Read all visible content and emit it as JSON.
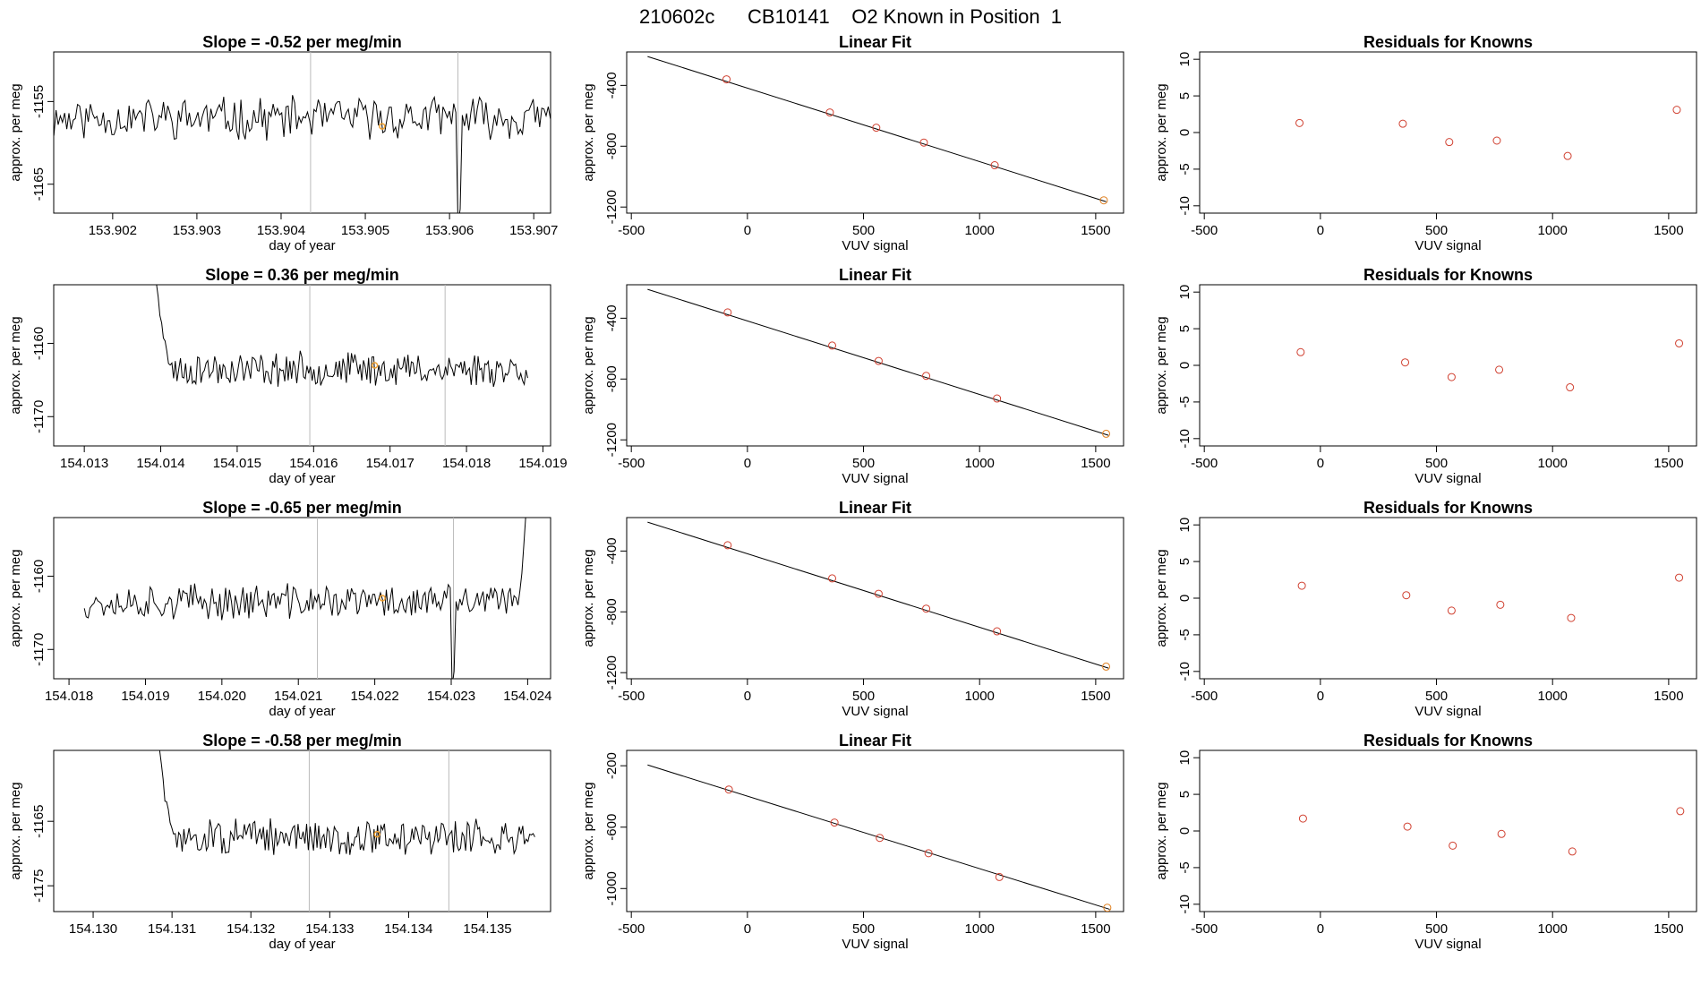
{
  "title": "210602c      CB10141    O2 Known in Position  1",
  "colors": {
    "trace": "#000000",
    "marker": "#f0a030",
    "residual": "#d04030",
    "fit_point": "#d04030",
    "last_point": "#e08020",
    "vline": "#bbbbbb",
    "axis": "#000000"
  },
  "chart_data": [
    {
      "type": "line",
      "title": "Slope =  -0.52  per meg/min",
      "xlabel": "day of year",
      "ylabel": "approx. per meg",
      "xlim": [
        153.9013,
        153.9072
      ],
      "ylim": [
        -1168.5,
        -1149
      ],
      "xticks": [
        153.902,
        153.903,
        153.904,
        153.905,
        153.906,
        153.907
      ],
      "xtick_labels": [
        "153.902",
        "153.903",
        "153.904",
        "153.905",
        "153.906",
        "153.907"
      ],
      "yticks": [
        -1165,
        -1155
      ],
      "ytick_labels": [
        "-1165",
        "-1155"
      ],
      "vlines": [
        153.90435,
        153.9061
      ],
      "marker": {
        "x": 153.9052,
        "y": -1158
      },
      "trace": {
        "x0": 153.9012,
        "x1": 153.9073,
        "n": 240,
        "base": -1157,
        "amp": 2.2,
        "seed": 11,
        "start_high": false,
        "end_high": true,
        "dips": [
          {
            "x": 153.9061,
            "y": -1170
          }
        ]
      }
    },
    {
      "type": "scatter",
      "title": "Linear Fit",
      "xlabel": "VUV signal",
      "ylabel": "approx. per meg",
      "xlim": [
        -520,
        1620
      ],
      "ylim": [
        -1240,
        -180
      ],
      "xticks": [
        -500,
        0,
        500,
        1000,
        1500
      ],
      "xtick_labels": [
        "-500",
        "0",
        "500",
        "1000",
        "1500"
      ],
      "yticks": [
        -1200,
        -800,
        -400
      ],
      "ytick_labels": [
        "-1200",
        "-800",
        "-400"
      ],
      "line": {
        "x0": -430,
        "y0": -210,
        "x1": 1545,
        "y1": -1165
      },
      "points": [
        {
          "x": -90,
          "y": -360
        },
        {
          "x": 355,
          "y": -578
        },
        {
          "x": 555,
          "y": -678
        },
        {
          "x": 760,
          "y": -776
        },
        {
          "x": 1065,
          "y": -925
        },
        {
          "x": 1535,
          "y": -1156
        }
      ]
    },
    {
      "type": "scatter",
      "title": "Residuals for Knowns",
      "xlabel": "VUV signal",
      "ylabel": "approx. per meg",
      "xlim": [
        -520,
        1620
      ],
      "ylim": [
        -11,
        11
      ],
      "xticks": [
        -500,
        0,
        500,
        1000,
        1500
      ],
      "xtick_labels": [
        "-500",
        "0",
        "500",
        "1000",
        "1500"
      ],
      "yticks": [
        -10,
        -5,
        0,
        5,
        10
      ],
      "ytick_labels": [
        "-10",
        "-5",
        "0",
        "5",
        "10"
      ],
      "points": [
        {
          "x": -90,
          "y": 1.3
        },
        {
          "x": 355,
          "y": 1.2
        },
        {
          "x": 555,
          "y": -1.3
        },
        {
          "x": 760,
          "y": -1.1
        },
        {
          "x": 1065,
          "y": -3.2
        },
        {
          "x": 1535,
          "y": 3.1
        }
      ]
    },
    {
      "type": "line",
      "title": "Slope =  0.36  per meg/min",
      "xlabel": "day of year",
      "ylabel": "approx. per meg",
      "xlim": [
        154.0126,
        154.0191
      ],
      "ylim": [
        -1174,
        -1152
      ],
      "xticks": [
        154.013,
        154.014,
        154.015,
        154.016,
        154.017,
        154.018,
        154.019
      ],
      "xtick_labels": [
        "154.013",
        "154.014",
        "154.015",
        "154.016",
        "154.017",
        "154.018",
        "154.019"
      ],
      "yticks": [
        -1170,
        -1160
      ],
      "ytick_labels": [
        "-1170",
        "-1160"
      ],
      "vlines": [
        154.01595,
        154.01772
      ],
      "marker": {
        "x": 154.0168,
        "y": -1163
      },
      "trace": {
        "x0": 154.0139,
        "x1": 154.0188,
        "n": 220,
        "base": -1163.5,
        "amp": 2.0,
        "seed": 23,
        "start_high": true,
        "end_high": false,
        "dips": []
      }
    },
    {
      "type": "scatter",
      "title": "Linear Fit",
      "xlabel": "VUV signal",
      "ylabel": "approx. per meg",
      "xlim": [
        -520,
        1620
      ],
      "ylim": [
        -1240,
        -180
      ],
      "xticks": [
        -500,
        0,
        500,
        1000,
        1500
      ],
      "xtick_labels": [
        "-500",
        "0",
        "500",
        "1000",
        "1500"
      ],
      "yticks": [
        -1200,
        -800,
        -400
      ],
      "ytick_labels": [
        "-1200",
        "-800",
        "-400"
      ],
      "line": {
        "x0": -430,
        "y0": -210,
        "x1": 1555,
        "y1": -1170
      },
      "points": [
        {
          "x": -85,
          "y": -362
        },
        {
          "x": 365,
          "y": -580
        },
        {
          "x": 565,
          "y": -681
        },
        {
          "x": 770,
          "y": -779
        },
        {
          "x": 1075,
          "y": -928
        },
        {
          "x": 1545,
          "y": -1160
        }
      ]
    },
    {
      "type": "scatter",
      "title": "Residuals for Knowns",
      "xlabel": "VUV signal",
      "ylabel": "approx. per meg",
      "xlim": [
        -520,
        1620
      ],
      "ylim": [
        -11,
        11
      ],
      "xticks": [
        -500,
        0,
        500,
        1000,
        1500
      ],
      "xtick_labels": [
        "-500",
        "0",
        "500",
        "1000",
        "1500"
      ],
      "yticks": [
        -10,
        -5,
        0,
        5,
        10
      ],
      "ytick_labels": [
        "-10",
        "-5",
        "0",
        "5",
        "10"
      ],
      "points": [
        {
          "x": -85,
          "y": 1.8
        },
        {
          "x": 365,
          "y": 0.4
        },
        {
          "x": 565,
          "y": -1.6
        },
        {
          "x": 770,
          "y": -0.6
        },
        {
          "x": 1075,
          "y": -3.0
        },
        {
          "x": 1545,
          "y": 3.0
        }
      ]
    },
    {
      "type": "line",
      "title": "Slope =  -0.65  per meg/min",
      "xlabel": "day of year",
      "ylabel": "approx. per meg",
      "xlim": [
        154.0178,
        154.0243
      ],
      "ylim": [
        -1174,
        -1152
      ],
      "xticks": [
        154.018,
        154.019,
        154.02,
        154.021,
        154.022,
        154.023,
        154.024
      ],
      "xtick_labels": [
        "154.018",
        "154.019",
        "154.020",
        "154.021",
        "154.022",
        "154.023",
        "154.024"
      ],
      "yticks": [
        -1170,
        -1160
      ],
      "ytick_labels": [
        "-1170",
        "-1160"
      ],
      "vlines": [
        154.02125,
        154.02303
      ],
      "marker": {
        "x": 154.0221,
        "y": -1163
      },
      "trace": {
        "x0": 154.0182,
        "x1": 154.024,
        "n": 230,
        "base": -1163.5,
        "amp": 2.1,
        "seed": 37,
        "start_high": false,
        "end_high": true,
        "dips": [
          {
            "x": 154.023,
            "y": -1175
          }
        ]
      }
    },
    {
      "type": "scatter",
      "title": "Linear Fit",
      "xlabel": "VUV signal",
      "ylabel": "approx. per meg",
      "xlim": [
        -520,
        1620
      ],
      "ylim": [
        -1240,
        -180
      ],
      "xticks": [
        -500,
        0,
        500,
        1000,
        1500
      ],
      "xtick_labels": [
        "-500",
        "0",
        "500",
        "1000",
        "1500"
      ],
      "yticks": [
        -1200,
        -800,
        -400
      ],
      "ytick_labels": [
        "-1200",
        "-800",
        "-400"
      ],
      "line": {
        "x0": -430,
        "y0": -210,
        "x1": 1555,
        "y1": -1170
      },
      "points": [
        {
          "x": -85,
          "y": -362
        },
        {
          "x": 365,
          "y": -580
        },
        {
          "x": 565,
          "y": -681
        },
        {
          "x": 770,
          "y": -779
        },
        {
          "x": 1075,
          "y": -928
        },
        {
          "x": 1545,
          "y": -1160
        }
      ]
    },
    {
      "type": "scatter",
      "title": "Residuals for Knowns",
      "xlabel": "VUV signal",
      "ylabel": "approx. per meg",
      "xlim": [
        -520,
        1620
      ],
      "ylim": [
        -11,
        11
      ],
      "xticks": [
        -500,
        0,
        500,
        1000,
        1500
      ],
      "xtick_labels": [
        "-500",
        "0",
        "500",
        "1000",
        "1500"
      ],
      "yticks": [
        -10,
        -5,
        0,
        5,
        10
      ],
      "ytick_labels": [
        "-10",
        "-5",
        "0",
        "5",
        "10"
      ],
      "points": [
        {
          "x": -80,
          "y": 1.7
        },
        {
          "x": 370,
          "y": 0.4
        },
        {
          "x": 565,
          "y": -1.7
        },
        {
          "x": 775,
          "y": -0.9
        },
        {
          "x": 1080,
          "y": -2.7
        },
        {
          "x": 1545,
          "y": 2.8
        }
      ]
    },
    {
      "type": "line",
      "title": "Slope =  -0.58  per meg/min",
      "xlabel": "day of year",
      "ylabel": "approx. per meg",
      "xlim": [
        154.1295,
        154.1358
      ],
      "ylim": [
        -1179,
        -1154
      ],
      "xticks": [
        154.13,
        154.131,
        154.132,
        154.133,
        154.134,
        154.135
      ],
      "xtick_labels": [
        "154.130",
        "154.131",
        "154.132",
        "154.133",
        "154.134",
        "154.135"
      ],
      "yticks": [
        -1175,
        -1165
      ],
      "ytick_labels": [
        "-1175",
        "-1165"
      ],
      "vlines": [
        154.13274,
        154.13451
      ],
      "marker": {
        "x": 154.1336,
        "y": -1167
      },
      "trace": {
        "x0": 154.1308,
        "x1": 154.1356,
        "n": 220,
        "base": -1167.5,
        "amp": 2.4,
        "seed": 51,
        "start_high": true,
        "end_high": false,
        "dips": []
      }
    },
    {
      "type": "scatter",
      "title": "Linear Fit",
      "xlabel": "VUV signal",
      "ylabel": "approx. per meg",
      "xlim": [
        -520,
        1620
      ],
      "ylim": [
        -1150,
        -100
      ],
      "xticks": [
        -500,
        0,
        500,
        1000,
        1500
      ],
      "xtick_labels": [
        "-500",
        "0",
        "500",
        "1000",
        "1500"
      ],
      "yticks": [
        -1000,
        -600,
        -200
      ],
      "ytick_labels": [
        "-1000",
        "-600",
        "-200"
      ],
      "line": {
        "x0": -430,
        "y0": -195,
        "x1": 1560,
        "y1": -1135
      },
      "points": [
        {
          "x": -80,
          "y": -355
        },
        {
          "x": 375,
          "y": -570
        },
        {
          "x": 570,
          "y": -670
        },
        {
          "x": 780,
          "y": -770
        },
        {
          "x": 1085,
          "y": -925
        },
        {
          "x": 1550,
          "y": -1125
        }
      ]
    },
    {
      "type": "scatter",
      "title": "Residuals for Knowns",
      "xlabel": "VUV signal",
      "ylabel": "approx. per meg",
      "xlim": [
        -520,
        1620
      ],
      "ylim": [
        -11,
        11
      ],
      "xticks": [
        -500,
        0,
        500,
        1000,
        1500
      ],
      "xtick_labels": [
        "-500",
        "0",
        "500",
        "1000",
        "1500"
      ],
      "yticks": [
        -10,
        -5,
        0,
        5,
        10
      ],
      "ytick_labels": [
        "-10",
        "-5",
        "0",
        "5",
        "10"
      ],
      "points": [
        {
          "x": -75,
          "y": 1.7
        },
        {
          "x": 375,
          "y": 0.6
        },
        {
          "x": 570,
          "y": -2.0
        },
        {
          "x": 780,
          "y": -0.4
        },
        {
          "x": 1085,
          "y": -2.8
        },
        {
          "x": 1550,
          "y": 2.7
        }
      ]
    }
  ]
}
